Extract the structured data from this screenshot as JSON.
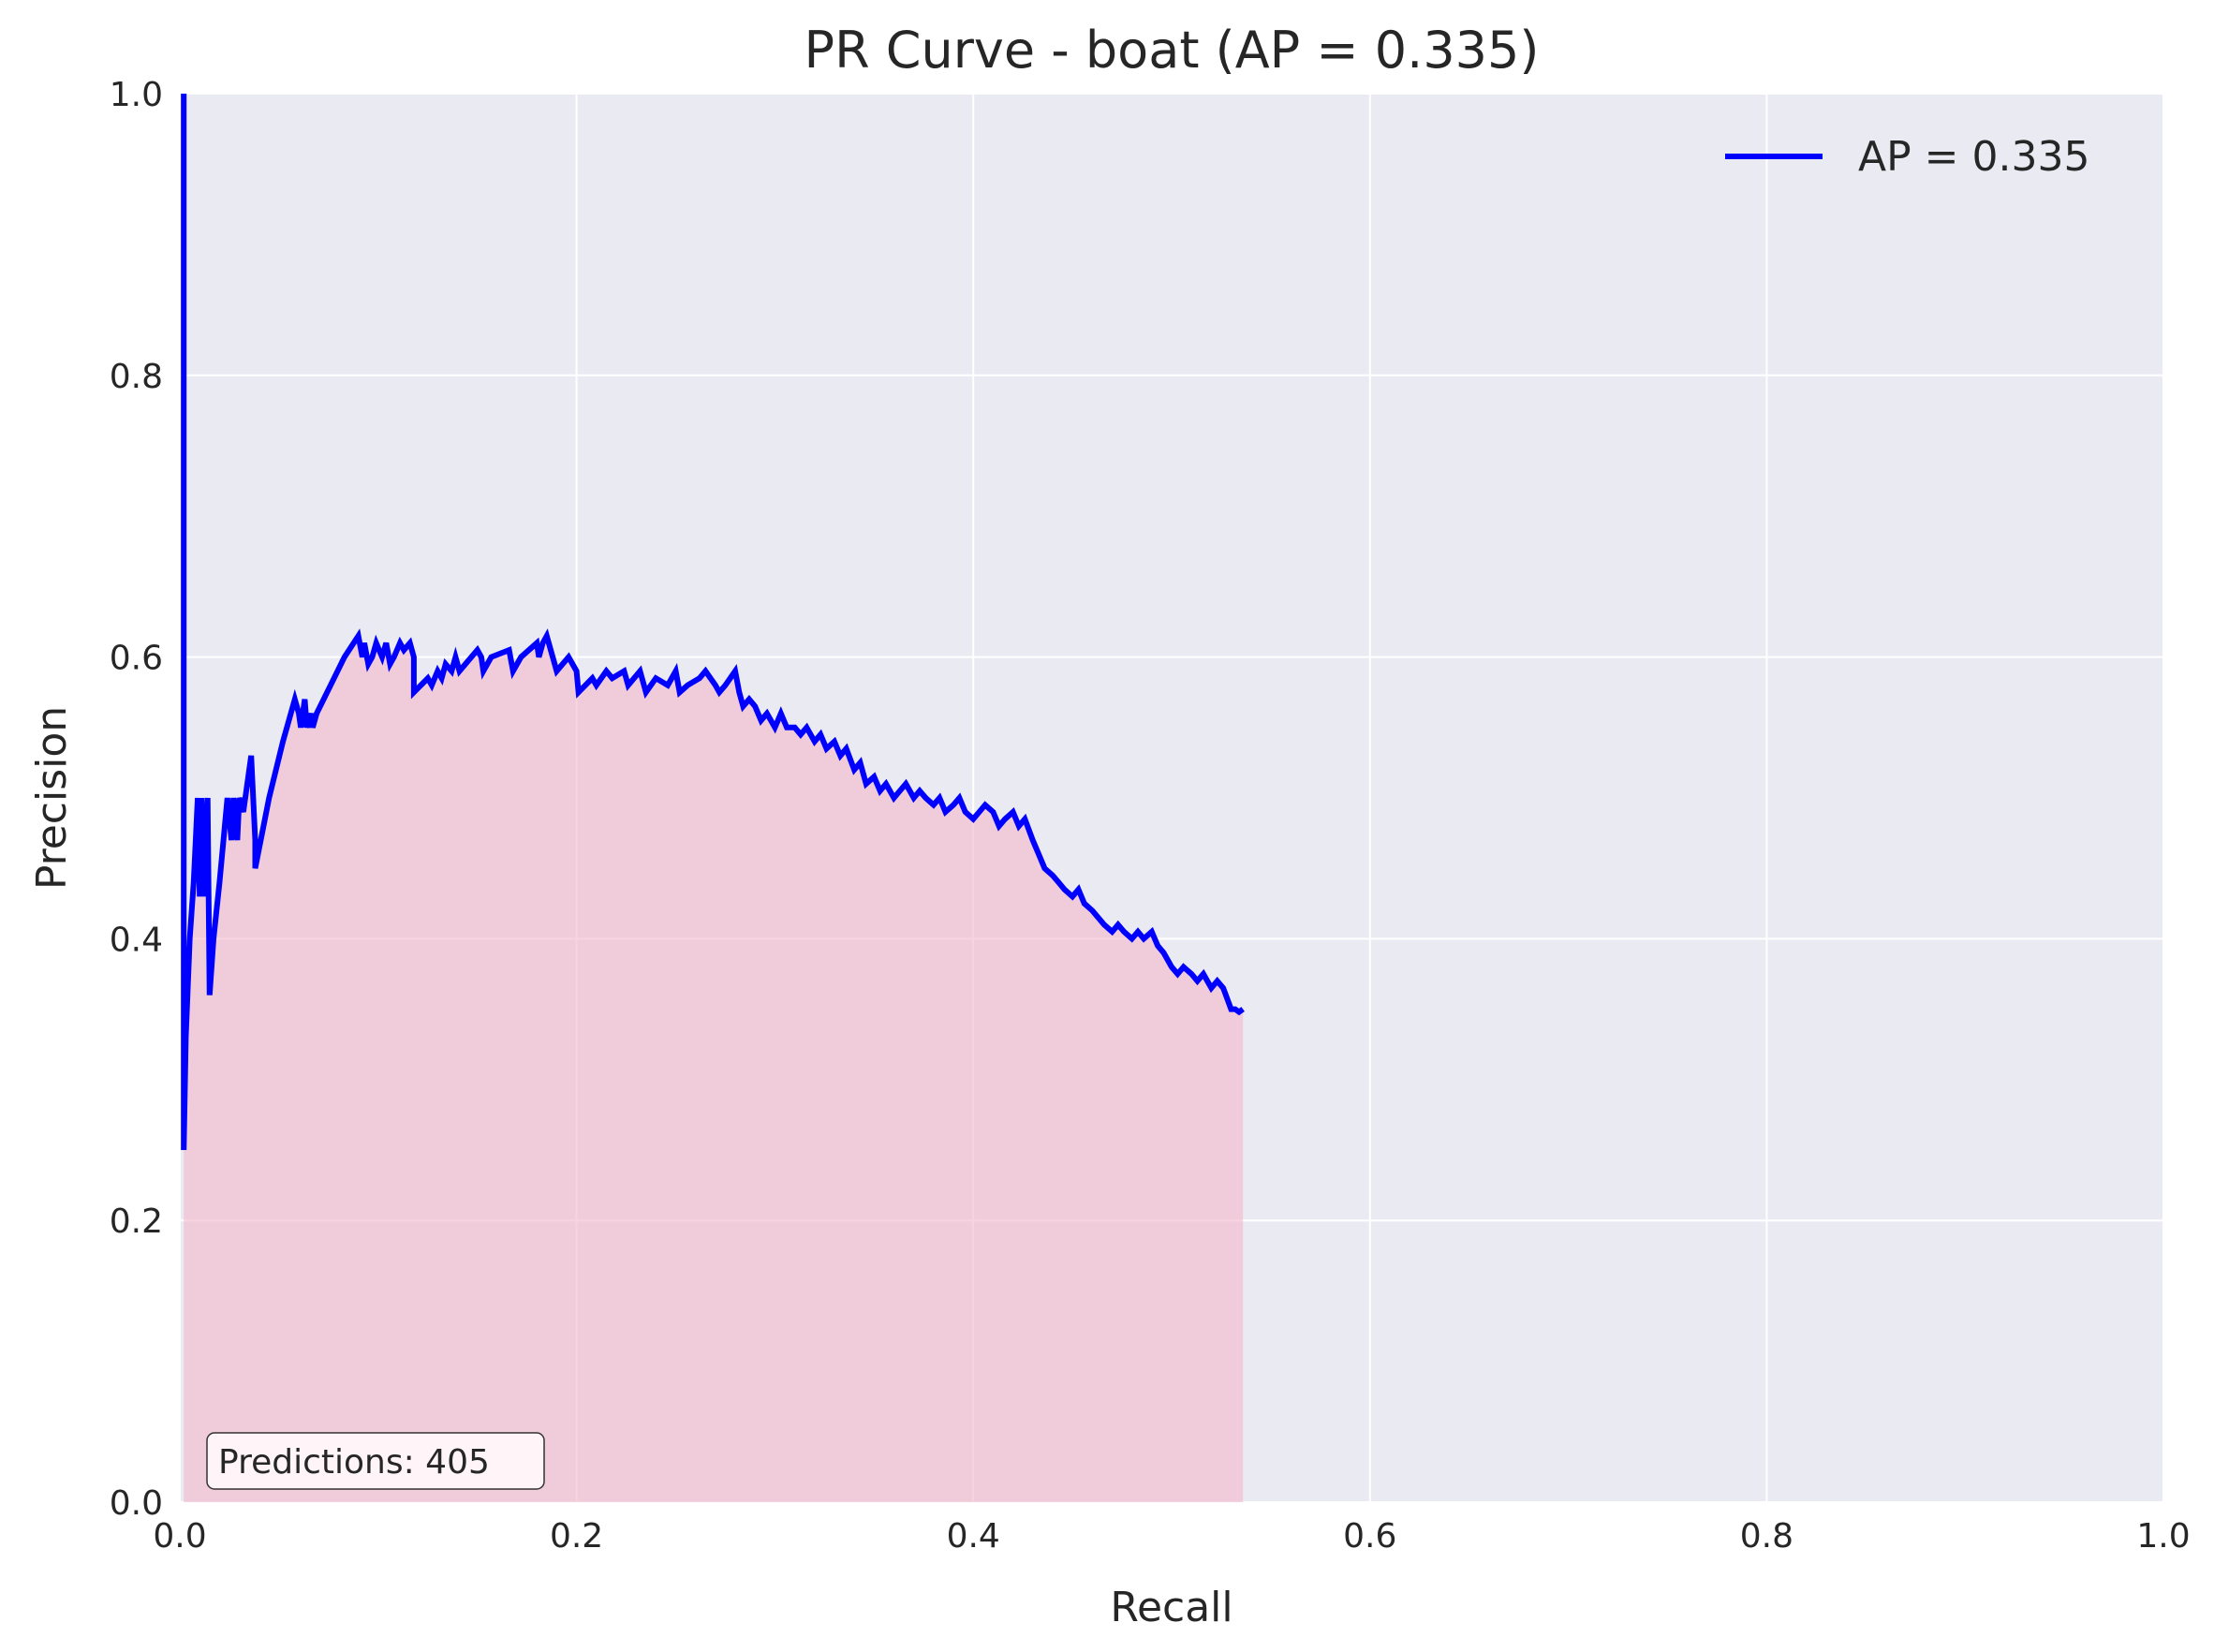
{
  "chart_data": {
    "type": "line",
    "title": "PR Curve - boat (AP = 0.335)",
    "xlabel": "Recall",
    "ylabel": "Precision",
    "xlim": [
      0.0,
      1.0
    ],
    "ylim": [
      0.0,
      1.0
    ],
    "xticks": [
      "0.0",
      "0.2",
      "0.4",
      "0.6",
      "0.8",
      "1.0"
    ],
    "yticks": [
      "0.0",
      "0.2",
      "0.4",
      "0.6",
      "0.8",
      "1.0"
    ],
    "grid": true,
    "legend": {
      "position": "top-right",
      "entries": [
        "AP = 0.335"
      ]
    },
    "annotation": "Predictions: 405",
    "colors": {
      "line": "#0000ff",
      "fill": "#f3b6c9",
      "plot_bg": "#eaeaf2",
      "grid": "#ffffff"
    },
    "series": [
      {
        "name": "AP = 0.335",
        "x": [
          0.002,
          0.002,
          0.003,
          0.005,
          0.007,
          0.009,
          0.01,
          0.011,
          0.012,
          0.014,
          0.015,
          0.017,
          0.02,
          0.024,
          0.026,
          0.027,
          0.029,
          0.03,
          0.032,
          0.034,
          0.036,
          0.038,
          0.038,
          0.045,
          0.052,
          0.058,
          0.06,
          0.061,
          0.063,
          0.064,
          0.066,
          0.067,
          0.069,
          0.076,
          0.083,
          0.09,
          0.092,
          0.093,
          0.095,
          0.097,
          0.099,
          0.102,
          0.104,
          0.106,
          0.108,
          0.111,
          0.113,
          0.116,
          0.118,
          0.118,
          0.125,
          0.127,
          0.13,
          0.132,
          0.134,
          0.137,
          0.139,
          0.141,
          0.15,
          0.152,
          0.153,
          0.157,
          0.166,
          0.168,
          0.172,
          0.18,
          0.181,
          0.183,
          0.185,
          0.19,
          0.196,
          0.2,
          0.201,
          0.208,
          0.21,
          0.215,
          0.218,
          0.224,
          0.226,
          0.232,
          0.235,
          0.24,
          0.246,
          0.25,
          0.252,
          0.256,
          0.262,
          0.265,
          0.27,
          0.272,
          0.275,
          0.28,
          0.282,
          0.284,
          0.287,
          0.29,
          0.293,
          0.296,
          0.3,
          0.303,
          0.306,
          0.31,
          0.313,
          0.316,
          0.32,
          0.323,
          0.326,
          0.33,
          0.333,
          0.336,
          0.34,
          0.343,
          0.346,
          0.35,
          0.353,
          0.356,
          0.36,
          0.363,
          0.366,
          0.37,
          0.373,
          0.376,
          0.38,
          0.383,
          0.386,
          0.39,
          0.393,
          0.396,
          0.4,
          0.403,
          0.406,
          0.41,
          0.413,
          0.416,
          0.42,
          0.423,
          0.426,
          0.43,
          0.433,
          0.436,
          0.44,
          0.443,
          0.446,
          0.45,
          0.453,
          0.456,
          0.46,
          0.463,
          0.466,
          0.47,
          0.473,
          0.476,
          0.48,
          0.483,
          0.486,
          0.49,
          0.493,
          0.496,
          0.5,
          0.503,
          0.506,
          0.51,
          0.513,
          0.516,
          0.52,
          0.523,
          0.526,
          0.53,
          0.532,
          0.534,
          0.536
        ],
        "y": [
          1.0,
          0.25,
          0.33,
          0.4,
          0.44,
          0.5,
          0.43,
          0.5,
          0.43,
          0.5,
          0.36,
          0.4,
          0.44,
          0.5,
          0.47,
          0.5,
          0.47,
          0.5,
          0.49,
          0.51,
          0.53,
          0.47,
          0.45,
          0.5,
          0.54,
          0.57,
          0.56,
          0.55,
          0.57,
          0.55,
          0.56,
          0.55,
          0.56,
          0.58,
          0.6,
          0.615,
          0.6,
          0.61,
          0.595,
          0.6,
          0.61,
          0.6,
          0.61,
          0.595,
          0.6,
          0.61,
          0.605,
          0.61,
          0.6,
          0.575,
          0.585,
          0.58,
          0.59,
          0.585,
          0.595,
          0.59,
          0.6,
          0.59,
          0.605,
          0.6,
          0.59,
          0.6,
          0.605,
          0.59,
          0.6,
          0.61,
          0.6,
          0.61,
          0.615,
          0.59,
          0.6,
          0.59,
          0.575,
          0.585,
          0.58,
          0.59,
          0.585,
          0.59,
          0.58,
          0.59,
          0.575,
          0.585,
          0.58,
          0.59,
          0.575,
          0.58,
          0.585,
          0.59,
          0.58,
          0.575,
          0.58,
          0.59,
          0.575,
          0.565,
          0.57,
          0.565,
          0.555,
          0.56,
          0.55,
          0.56,
          0.55,
          0.55,
          0.545,
          0.55,
          0.54,
          0.545,
          0.535,
          0.54,
          0.53,
          0.535,
          0.52,
          0.525,
          0.51,
          0.515,
          0.505,
          0.51,
          0.5,
          0.505,
          0.51,
          0.5,
          0.505,
          0.5,
          0.495,
          0.5,
          0.49,
          0.495,
          0.5,
          0.49,
          0.485,
          0.49,
          0.495,
          0.49,
          0.48,
          0.485,
          0.49,
          0.48,
          0.485,
          0.47,
          0.46,
          0.45,
          0.445,
          0.44,
          0.435,
          0.43,
          0.435,
          0.425,
          0.42,
          0.415,
          0.41,
          0.405,
          0.41,
          0.405,
          0.4,
          0.405,
          0.4,
          0.405,
          0.395,
          0.39,
          0.38,
          0.375,
          0.38,
          0.375,
          0.37,
          0.375,
          0.365,
          0.37,
          0.365,
          0.35,
          0.35,
          0.348,
          0.35
        ]
      }
    ]
  }
}
